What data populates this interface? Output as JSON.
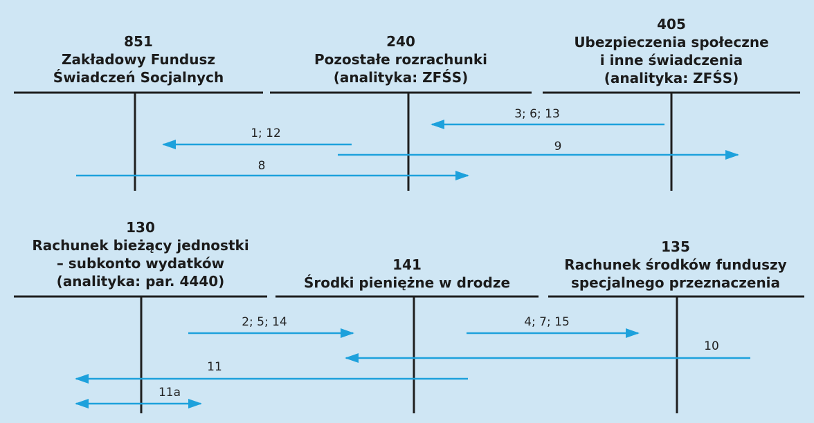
{
  "colors": {
    "background": "#cfe6f4",
    "ledger": "#1e1e1e",
    "arrow": "#1da1dc"
  },
  "accounts": [
    {
      "number": "851",
      "lines": [
        "Zakładowy Fundusz",
        "Świadczeń Socjalnych"
      ]
    },
    {
      "number": "240",
      "lines": [
        "Pozostałe rozrachunki",
        "(analityka: ZFŚS)"
      ]
    },
    {
      "number": "405",
      "lines": [
        "Ubezpieczenia społeczne",
        "i inne świadczenia",
        "(analityka: ZFŚS)"
      ]
    },
    {
      "number": "130",
      "lines": [
        "Rachunek bieżący jednostki",
        "– subkonto wydatków",
        "(analityka: par. 4440)"
      ]
    },
    {
      "number": "141",
      "lines": [
        "Środki pieniężne w drodze"
      ]
    },
    {
      "number": "135",
      "lines": [
        "Rachunek środków funduszy",
        "specjalnego przeznaczenia"
      ]
    }
  ],
  "flows": [
    {
      "label": "3; 6; 13",
      "from": "405",
      "to": "240"
    },
    {
      "label": "1; 12",
      "from": "240",
      "to": "851"
    },
    {
      "label": "9",
      "from": "240",
      "to": "405"
    },
    {
      "label": "8",
      "from": "851",
      "to": "240"
    },
    {
      "label": "2; 5; 14",
      "from": "130",
      "to": "141"
    },
    {
      "label": "4; 7; 15",
      "from": "141",
      "to": "135"
    },
    {
      "label": "10",
      "from": "135",
      "to": "141"
    },
    {
      "label": "11",
      "from": "141",
      "to": "130"
    },
    {
      "label": "11a",
      "from": "130",
      "to": "130"
    }
  ]
}
